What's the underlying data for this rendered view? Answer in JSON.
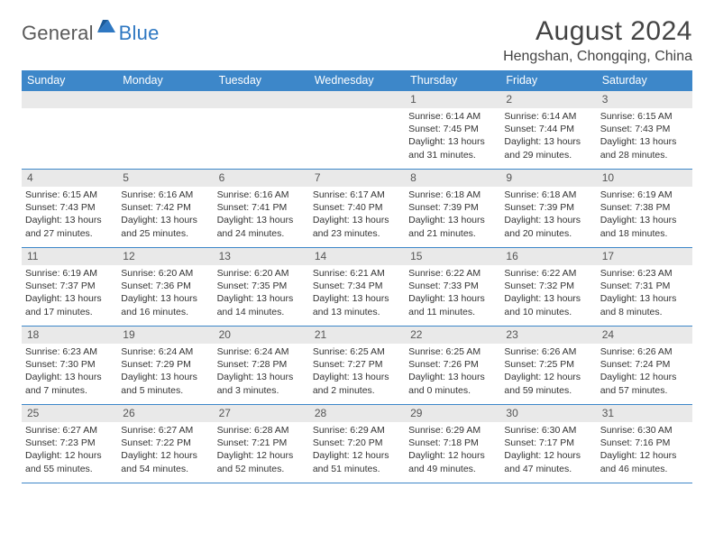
{
  "logo": {
    "general": "General",
    "blue": "Blue"
  },
  "title": "August 2024",
  "location": "Hengshan, Chongqing, China",
  "colors": {
    "header_bg": "#3d87c9",
    "header_fg": "#ffffff",
    "daynum_bg": "#e9e9e9",
    "text": "#333333",
    "logo_general": "#5a5a5a",
    "logo_blue": "#2f78c2",
    "border": "#3d87c9"
  },
  "weekdays": [
    "Sunday",
    "Monday",
    "Tuesday",
    "Wednesday",
    "Thursday",
    "Friday",
    "Saturday"
  ],
  "weeks": [
    [
      null,
      null,
      null,
      null,
      {
        "n": "1",
        "sr": "6:14 AM",
        "ss": "7:45 PM",
        "dl": "13 hours and 31 minutes."
      },
      {
        "n": "2",
        "sr": "6:14 AM",
        "ss": "7:44 PM",
        "dl": "13 hours and 29 minutes."
      },
      {
        "n": "3",
        "sr": "6:15 AM",
        "ss": "7:43 PM",
        "dl": "13 hours and 28 minutes."
      }
    ],
    [
      {
        "n": "4",
        "sr": "6:15 AM",
        "ss": "7:43 PM",
        "dl": "13 hours and 27 minutes."
      },
      {
        "n": "5",
        "sr": "6:16 AM",
        "ss": "7:42 PM",
        "dl": "13 hours and 25 minutes."
      },
      {
        "n": "6",
        "sr": "6:16 AM",
        "ss": "7:41 PM",
        "dl": "13 hours and 24 minutes."
      },
      {
        "n": "7",
        "sr": "6:17 AM",
        "ss": "7:40 PM",
        "dl": "13 hours and 23 minutes."
      },
      {
        "n": "8",
        "sr": "6:18 AM",
        "ss": "7:39 PM",
        "dl": "13 hours and 21 minutes."
      },
      {
        "n": "9",
        "sr": "6:18 AM",
        "ss": "7:39 PM",
        "dl": "13 hours and 20 minutes."
      },
      {
        "n": "10",
        "sr": "6:19 AM",
        "ss": "7:38 PM",
        "dl": "13 hours and 18 minutes."
      }
    ],
    [
      {
        "n": "11",
        "sr": "6:19 AM",
        "ss": "7:37 PM",
        "dl": "13 hours and 17 minutes."
      },
      {
        "n": "12",
        "sr": "6:20 AM",
        "ss": "7:36 PM",
        "dl": "13 hours and 16 minutes."
      },
      {
        "n": "13",
        "sr": "6:20 AM",
        "ss": "7:35 PM",
        "dl": "13 hours and 14 minutes."
      },
      {
        "n": "14",
        "sr": "6:21 AM",
        "ss": "7:34 PM",
        "dl": "13 hours and 13 minutes."
      },
      {
        "n": "15",
        "sr": "6:22 AM",
        "ss": "7:33 PM",
        "dl": "13 hours and 11 minutes."
      },
      {
        "n": "16",
        "sr": "6:22 AM",
        "ss": "7:32 PM",
        "dl": "13 hours and 10 minutes."
      },
      {
        "n": "17",
        "sr": "6:23 AM",
        "ss": "7:31 PM",
        "dl": "13 hours and 8 minutes."
      }
    ],
    [
      {
        "n": "18",
        "sr": "6:23 AM",
        "ss": "7:30 PM",
        "dl": "13 hours and 7 minutes."
      },
      {
        "n": "19",
        "sr": "6:24 AM",
        "ss": "7:29 PM",
        "dl": "13 hours and 5 minutes."
      },
      {
        "n": "20",
        "sr": "6:24 AM",
        "ss": "7:28 PM",
        "dl": "13 hours and 3 minutes."
      },
      {
        "n": "21",
        "sr": "6:25 AM",
        "ss": "7:27 PM",
        "dl": "13 hours and 2 minutes."
      },
      {
        "n": "22",
        "sr": "6:25 AM",
        "ss": "7:26 PM",
        "dl": "13 hours and 0 minutes."
      },
      {
        "n": "23",
        "sr": "6:26 AM",
        "ss": "7:25 PM",
        "dl": "12 hours and 59 minutes."
      },
      {
        "n": "24",
        "sr": "6:26 AM",
        "ss": "7:24 PM",
        "dl": "12 hours and 57 minutes."
      }
    ],
    [
      {
        "n": "25",
        "sr": "6:27 AM",
        "ss": "7:23 PM",
        "dl": "12 hours and 55 minutes."
      },
      {
        "n": "26",
        "sr": "6:27 AM",
        "ss": "7:22 PM",
        "dl": "12 hours and 54 minutes."
      },
      {
        "n": "27",
        "sr": "6:28 AM",
        "ss": "7:21 PM",
        "dl": "12 hours and 52 minutes."
      },
      {
        "n": "28",
        "sr": "6:29 AM",
        "ss": "7:20 PM",
        "dl": "12 hours and 51 minutes."
      },
      {
        "n": "29",
        "sr": "6:29 AM",
        "ss": "7:18 PM",
        "dl": "12 hours and 49 minutes."
      },
      {
        "n": "30",
        "sr": "6:30 AM",
        "ss": "7:17 PM",
        "dl": "12 hours and 47 minutes."
      },
      {
        "n": "31",
        "sr": "6:30 AM",
        "ss": "7:16 PM",
        "dl": "12 hours and 46 minutes."
      }
    ]
  ],
  "labels": {
    "sunrise": "Sunrise: ",
    "sunset": "Sunset: ",
    "daylight": "Daylight: "
  }
}
